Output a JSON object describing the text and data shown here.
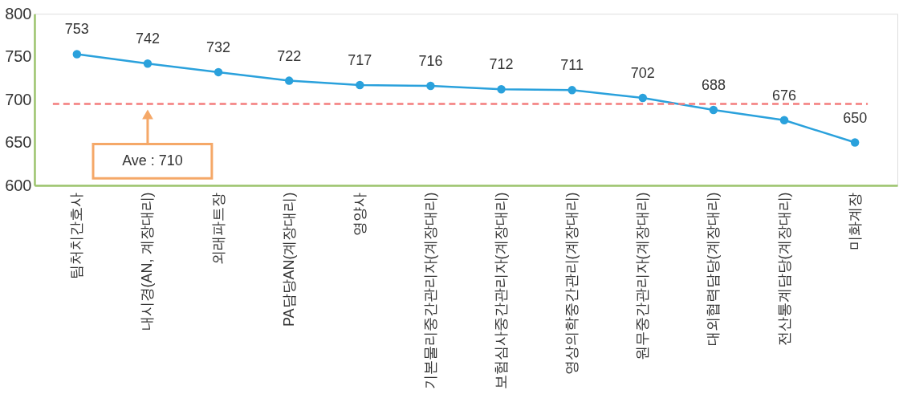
{
  "chart_data": {
    "type": "line",
    "categories": [
      "팀처치간호사",
      "내시경(AN, 계장대리)",
      "외래파트장",
      "PA담당AN(계장대리)",
      "영양사",
      "기본물리중간관리자(계장대리)",
      "보험심사중간관리자(계장대리)",
      "영상의학중간관리(계장대리)",
      "원무중간관리자(계장대리)",
      "대외협력담당(계장대리)",
      "전산통계담당(계장대리)",
      "미화계장"
    ],
    "series": [
      {
        "color": "#2aa1dc",
        "values": [
          753,
          742,
          732,
          722,
          717,
          716,
          712,
          711,
          702,
          688,
          676,
          650
        ]
      }
    ],
    "ylim": [
      600,
      800
    ],
    "yticks": [
      600,
      650,
      700,
      750,
      800
    ],
    "data_labels": true,
    "marker": "circle",
    "line_style": "solid",
    "grid": false,
    "ref_lines": [
      {
        "axis": "y",
        "value": 695,
        "color": "#f47c7c",
        "line_style": "dashed"
      }
    ],
    "annotations": [
      "Ave : 710"
    ]
  }
}
